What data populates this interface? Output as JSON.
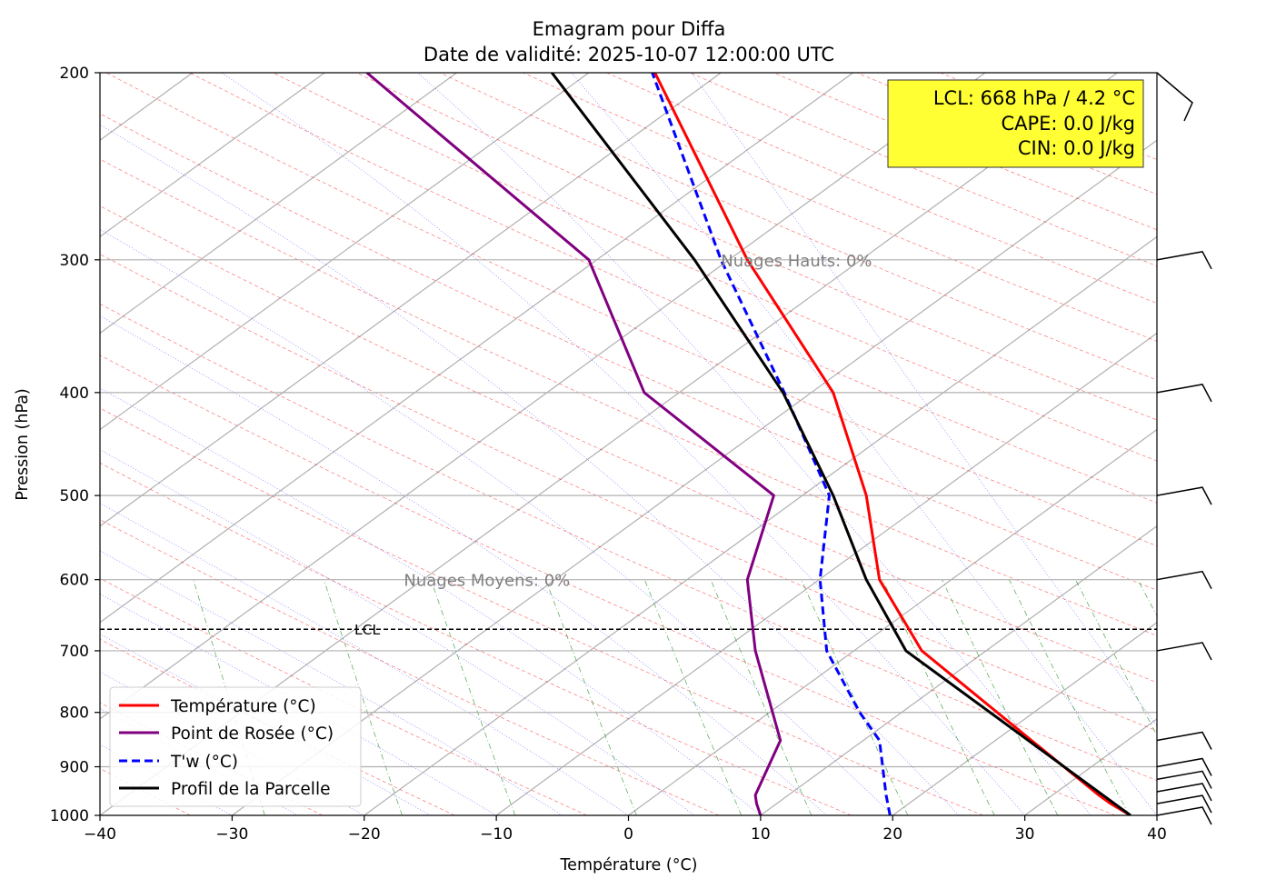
{
  "chart_data": {
    "type": "line",
    "title": "Emagram pour Diffa",
    "subtitle": "Date de validité: 2025-10-07 12:00:00 UTC",
    "xlabel": "Température (°C)",
    "ylabel": "Pression (hPa)",
    "xlim": [
      -40,
      40
    ],
    "ylim": [
      1000,
      200
    ],
    "y_scale": "log",
    "x_ticks": [
      "−40",
      "−30",
      "−20",
      "−10",
      "0",
      "10",
      "20",
      "30",
      "40"
    ],
    "y_ticks": [
      "200",
      "300",
      "400",
      "500",
      "600",
      "700",
      "800",
      "900",
      "1000"
    ],
    "grid": "horizontal at pressure ticks",
    "series": [
      {
        "name": "Température (°C)",
        "color": "#ff0000",
        "style": "solid",
        "points": [
          [
            38.0,
            1000
          ],
          [
            36.5,
            975
          ],
          [
            35.6,
            957
          ],
          [
            30.5,
            850
          ],
          [
            22.2,
            700
          ],
          [
            19.0,
            600
          ],
          [
            18.0,
            500
          ],
          [
            15.5,
            400
          ],
          [
            9.0,
            300
          ],
          [
            2.0,
            200
          ]
        ]
      },
      {
        "name": "Point de Rosée (°C)",
        "color": "#800080",
        "style": "solid",
        "points": [
          [
            10.0,
            1000
          ],
          [
            9.7,
            975
          ],
          [
            9.6,
            957
          ],
          [
            11.5,
            850
          ],
          [
            9.6,
            700
          ],
          [
            9.0,
            600
          ],
          [
            11.0,
            500
          ],
          [
            1.2,
            400
          ],
          [
            -3.0,
            300
          ],
          [
            -19.8,
            200
          ]
        ]
      },
      {
        "name": "T'w (°C)",
        "color": "#0000ff",
        "style": "dashed",
        "points": [
          [
            19.8,
            1000
          ],
          [
            19.5,
            957
          ],
          [
            19.0,
            850
          ],
          [
            17.5,
            800
          ],
          [
            15.0,
            700
          ],
          [
            14.5,
            600
          ],
          [
            15.2,
            500
          ],
          [
            11.8,
            400
          ],
          [
            7.0,
            300
          ],
          [
            1.8,
            200
          ]
        ]
      },
      {
        "name": "Profil de la Parcelle",
        "color": "#000000",
        "style": "solid",
        "points": [
          [
            38.0,
            1000
          ],
          [
            21.0,
            700
          ],
          [
            18.0,
            600
          ],
          [
            15.5,
            500
          ],
          [
            11.7,
            400
          ],
          [
            5.0,
            300
          ],
          [
            -5.8,
            200
          ]
        ]
      }
    ],
    "lcl_line": {
      "pressure": 668,
      "label": "LCL"
    },
    "annotations": [
      {
        "text": "Nuages Hauts: 0%",
        "x": 7.0,
        "p": 300
      },
      {
        "text": "Nuages Moyens: 0%",
        "x": -17.0,
        "p": 600
      }
    ],
    "info_box": {
      "lines": [
        "LCL: 668 hPa / 4.2 °C",
        "CAPE: 0.0 J/kg",
        "CIN: 0.0 J/kg"
      ],
      "background": "#ffff33"
    },
    "wind_barb_pressures": [
      200,
      300,
      400,
      500,
      600,
      700,
      850,
      900,
      925,
      950,
      975,
      1000
    ],
    "legend": {
      "placement": "lower-left",
      "entries": [
        "Température (°C)",
        "Point de Rosée (°C)",
        "T'w (°C)",
        "Profil de la Parcelle"
      ]
    }
  }
}
